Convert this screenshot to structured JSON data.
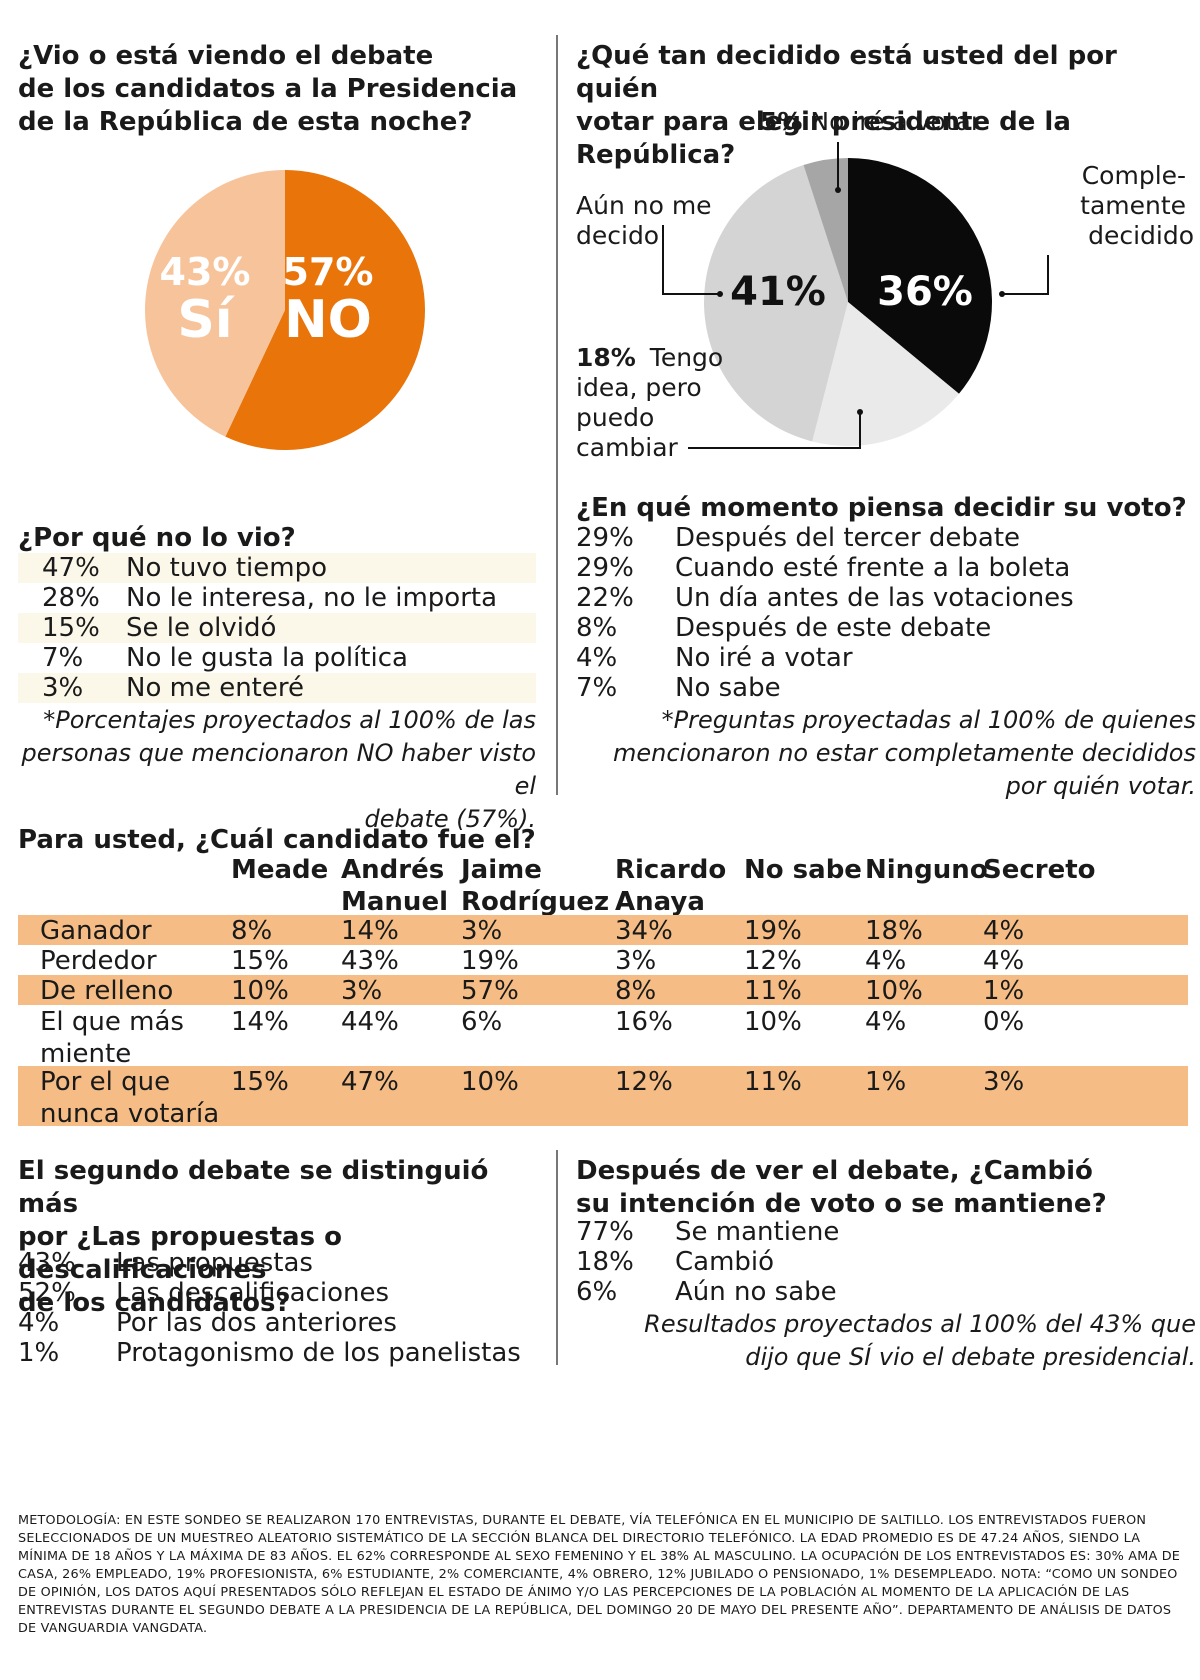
{
  "q1": {
    "title": "¿Vio o está viendo el debate de los candidatos a la Presidencia de la República de esta noche?",
    "title_lines": [
      "¿Vio o está viendo el debate",
      "de los candidatos a la Presidencia",
      "de la República de esta noche?"
    ]
  },
  "q2": {
    "title_lines": [
      "¿Qué tan decidido está usted del por quién",
      "votar para elegir presidente de la República?"
    ]
  },
  "chart_data": [
    {
      "type": "pie",
      "title": "¿Vio o está viendo el debate de los candidatos a la Presidencia de la República de esta noche?",
      "slices": [
        {
          "label": "NO",
          "value": 57,
          "display": "57%",
          "color": "#e8740a",
          "text_color": "#ffffff"
        },
        {
          "label": "Sí",
          "value": 43,
          "display": "43%",
          "color": "#f7c39a",
          "text_color": "#ffffff"
        }
      ]
    },
    {
      "type": "pie",
      "title": "¿Qué tan decidido está usted del por quién votar para elegir presidente de la República?",
      "slices": [
        {
          "label": "Completamente decidido",
          "value": 36,
          "display": "36%",
          "color": "#0a0a0a"
        },
        {
          "label": "Tengo idea, pero puedo cambiar",
          "value": 18,
          "display": "18%",
          "color": "#eaeaea"
        },
        {
          "label": "Aún no me decido",
          "value": 41,
          "display": "41%",
          "color": "#d4d4d4"
        },
        {
          "label": "No iré a votar",
          "value": 5,
          "display": "5%",
          "color": "#a6a6a6"
        }
      ],
      "callouts": {
        "no_ire_pct": "5%",
        "no_ire_label": "No iré a votar",
        "completo_lines": [
          "Comple-",
          "tamente",
          "decidido"
        ],
        "aun_lines": [
          "Aún no me",
          "decido"
        ],
        "tengo_pct": "18%",
        "tengo_lines": [
          "Tengo",
          "idea, pero",
          "puedo",
          "cambiar"
        ]
      }
    }
  ],
  "why_not": {
    "title": "¿Por qué no lo vio?",
    "items": [
      {
        "pct": "47%",
        "label": "No tuvo tiempo"
      },
      {
        "pct": "28%",
        "label": "No le interesa, no le importa"
      },
      {
        "pct": "15%",
        "label": "Se le olvidó"
      },
      {
        "pct": "7%",
        "label": "No le gusta la política"
      },
      {
        "pct": "3%",
        "label": "No me enteré"
      }
    ],
    "note_lines": [
      "*Porcentajes proyectados al 100% de las",
      "personas que mencionaron NO haber visto el",
      "debate (57%)."
    ]
  },
  "when_decide": {
    "title": "¿En qué momento piensa decidir su voto?",
    "items": [
      {
        "pct": "29%",
        "label": "Después del tercer debate"
      },
      {
        "pct": "29%",
        "label": "Cuando esté frente a la boleta"
      },
      {
        "pct": "22%",
        "label": "Un día antes de las votaciones"
      },
      {
        "pct": "8%",
        "label": "Después de este debate"
      },
      {
        "pct": "4%",
        "label": "No iré a votar"
      },
      {
        "pct": "7%",
        "label": "No sabe"
      }
    ],
    "note_lines": [
      "*Preguntas proyectadas al 100% de quienes",
      "mencionaron no estar completamente decididos",
      "por quién votar."
    ]
  },
  "candidates_table": {
    "title": "Para usted, ¿Cuál candidato fue el?",
    "headers": [
      [
        "Meade"
      ],
      [
        "Andrés",
        "Manuel"
      ],
      [
        "Jaime",
        "Rodríguez"
      ],
      [
        "Ricardo",
        "Anaya"
      ],
      [
        "No sabe"
      ],
      [
        "Ninguno"
      ],
      [
        "Secreto"
      ]
    ],
    "rows": [
      {
        "label": [
          "Ganador"
        ],
        "values": [
          "8%",
          "14%",
          "3%",
          "34%",
          "19%",
          "18%",
          "4%"
        ]
      },
      {
        "label": [
          "Perdedor"
        ],
        "values": [
          "15%",
          "43%",
          "19%",
          "3%",
          "12%",
          "4%",
          "4%"
        ]
      },
      {
        "label": [
          "De relleno"
        ],
        "values": [
          "10%",
          "3%",
          "57%",
          "8%",
          "11%",
          "10%",
          "1%"
        ]
      },
      {
        "label": [
          "El que más",
          "miente"
        ],
        "values": [
          "14%",
          "44%",
          "6%",
          "16%",
          "10%",
          "4%",
          "0%"
        ]
      },
      {
        "label": [
          "Por el que",
          "nunca votaría"
        ],
        "values": [
          "15%",
          "47%",
          "10%",
          "12%",
          "11%",
          "1%",
          "3%"
        ]
      }
    ]
  },
  "second_debate": {
    "title_lines": [
      "El segundo debate se distinguió más",
      "por ¿Las propuestas o descalificaciones",
      "de los candidatos?"
    ],
    "items": [
      {
        "pct": "43%",
        "label": "Las propuestas"
      },
      {
        "pct": "52%",
        "label": "Las descalificaciones"
      },
      {
        "pct": "4%",
        "label": "Por las dos anteriores"
      },
      {
        "pct": "1%",
        "label": "Protagonismo de los panelistas"
      }
    ]
  },
  "vote_change": {
    "title_lines": [
      "Después de ver el debate, ¿Cambió",
      "su intención de voto o se mantiene?"
    ],
    "items": [
      {
        "pct": "77%",
        "label": "Se mantiene"
      },
      {
        "pct": "18%",
        "label": "Cambió"
      },
      {
        "pct": "6%",
        "label": "Aún no sabe"
      }
    ],
    "note_lines": [
      "Resultados proyectados al 100% del 43% que",
      "dijo que SÍ vio el debate presidencial."
    ]
  },
  "methodology": "METODOLOGÍA: EN ESTE SONDEO SE REALIZARON 170 ENTREVISTAS, DURANTE EL DEBATE, VÍA TELEFÓNICA EN EL MUNICIPIO DE SALTILLO. LOS ENTREVISTADOS FUERON SELECCIONADOS DE UN MUESTREO ALEATORIO SISTEMÁTICO DE LA SECCIÓN BLANCA DEL DIRECTORIO TELEFÓNICO. LA EDAD PROMEDIO ES DE 47.24 AÑOS, SIENDO LA MÍNIMA DE 18 AÑOS Y LA MÁXIMA DE 83 AÑOS. EL 62% CORRESPONDE AL SEXO FEMENINO Y EL 38% AL MASCULINO. LA OCUPACIÓN DE LOS ENTREVISTADOS ES: 30% AMA DE CASA, 26% EMPLEADO, 19% PROFESIONISTA, 6% ESTUDIANTE, 2% COMERCIANTE, 4% OBRERO, 12% JUBILADO O PENSIONADO, 1% DESEMPLEADO. NOTA: “COMO UN SONDEO DE OPINIÓN, LOS DATOS AQUÍ PRESENTADOS SÓLO REFLEJAN EL ESTADO DE ÁNIMO Y/O LAS PERCEPCIONES DE LA POBLACIÓN AL MOMENTO DE LA APLICACIÓN DE LAS ENTREVISTAS DURANTE EL SEGUNDO DEBATE A LA PRESIDENCIA DE LA REPÚBLICA, DEL DOMINGO 20 DE MAYO DEL PRESENTE AÑO”. DEPARTAMENTO DE ANÁLISIS DE DATOS DE VANGUARDIA VANGDATA."
}
